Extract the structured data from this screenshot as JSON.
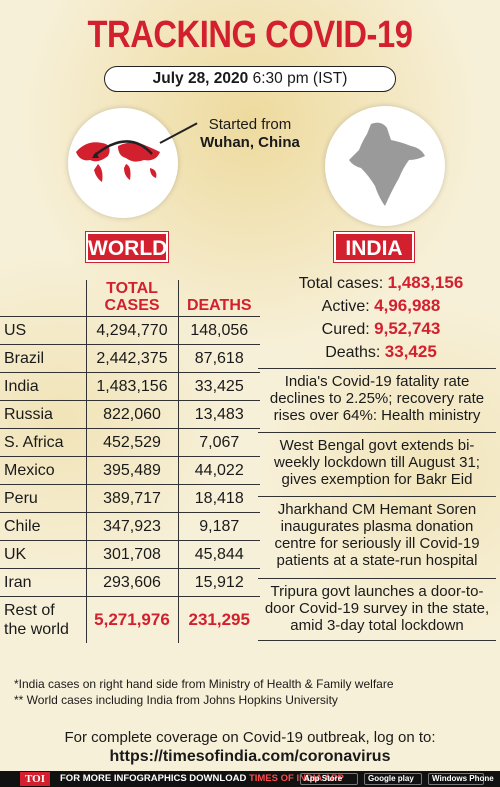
{
  "title": "TRACKING COVID-19",
  "date": {
    "day": "July 28, 2020",
    "time": "6:30 pm (IST)"
  },
  "origin": {
    "line1": "Started from",
    "line2": "Wuhan, China"
  },
  "world": {
    "badge": "WORLD",
    "headers": {
      "cases": "TOTAL CASES",
      "deaths": "DEATHS"
    },
    "rows": [
      {
        "country": "US",
        "cases": "4,294,770",
        "deaths": "148,056"
      },
      {
        "country": "Brazil",
        "cases": "2,442,375",
        "deaths": "87,618"
      },
      {
        "country": "India",
        "cases": "1,483,156",
        "deaths": "33,425"
      },
      {
        "country": "Russia",
        "cases": "822,060",
        "deaths": "13,483"
      },
      {
        "country": "S. Africa",
        "cases": "452,529",
        "deaths": "7,067"
      },
      {
        "country": "Mexico",
        "cases": "395,489",
        "deaths": "44,022"
      },
      {
        "country": "Peru",
        "cases": "389,717",
        "deaths": "18,418"
      },
      {
        "country": "Chile",
        "cases": "347,923",
        "deaths": "9,187"
      },
      {
        "country": "UK",
        "cases": "301,708",
        "deaths": "45,844"
      },
      {
        "country": "Iran",
        "cases": "293,606",
        "deaths": "15,912"
      }
    ],
    "rest": {
      "line1": "Rest of",
      "line2": "the world",
      "cases": "5,271,976",
      "deaths": "231,295"
    }
  },
  "india": {
    "badge": "INDIA",
    "stats": [
      {
        "label": "Total cases:",
        "value": "1,483,156"
      },
      {
        "label": "Active:",
        "value": "4,96,988"
      },
      {
        "label": "Cured:",
        "value": "9,52,743"
      },
      {
        "label": "Deaths:",
        "value": "33,425"
      }
    ],
    "news": [
      "India's Covid-19 fatality rate declines to 2.25%; recovery rate rises over 64%: Health ministry",
      "West Bengal govt extends bi-weekly lockdown till August 31; gives exemption for Bakr Eid",
      "Jharkhand CM Hemant Soren inaugurates plasma donation centre for seriously ill Covid-19 patients at a state-run hospital",
      "Tripura govt launches a door-to-door Covid-19 survey in the state, amid 3-day total lockdown"
    ]
  },
  "notes": [
    "*India cases on right hand side from Ministry of Health & Family welfare",
    "** World cases including India from Johns Hopkins University"
  ],
  "footer": {
    "line": "For complete coverage on Covid-19 outbreak, log on to:",
    "link": "https://timesofindia.com/coronavirus"
  },
  "bottom_bar": {
    "logo": "TOI",
    "text": "FOR MORE  INFOGRAPHICS DOWNLOAD",
    "app": "TIMES OF INDIA  APP",
    "stores": [
      "App Store",
      "Google play",
      "Windows Phone"
    ]
  },
  "colors": {
    "accent": "#d2202f",
    "background": "#f7f0d8"
  }
}
